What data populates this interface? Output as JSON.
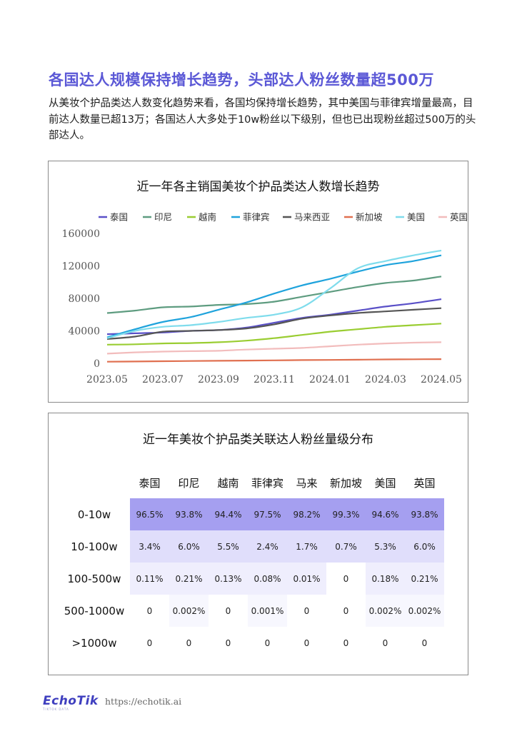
{
  "headline": "各国达人规模保持增长趋势，头部达人粉丝数量超500万",
  "intro": "从美妆个护品类达人数变化趋势来看，各国均保持增长趋势，其中美国与菲律宾增量最高，目前达人数量已超13万；各国达人大多处于10w粉丝以下级别，但也已出现粉丝超过500万的头部达人。",
  "chart_data": [
    {
      "type": "line",
      "title": "近一年各主销国美妆个护品类达人数增长趋势",
      "x": [
        "2023.05",
        "2023.06",
        "2023.07",
        "2023.08",
        "2023.09",
        "2023.10",
        "2023.11",
        "2023.12",
        "2024.01",
        "2024.02",
        "2024.03",
        "2024.04",
        "2024.05"
      ],
      "x_tick_labels": [
        "2023.05",
        "2023.07",
        "2023.09",
        "2023.11",
        "2024.01",
        "2024.03",
        "2024.05"
      ],
      "ylim": [
        0,
        160000
      ],
      "y_ticks": [
        0,
        40000,
        80000,
        120000,
        160000
      ],
      "grid": false,
      "legend_position": "top",
      "series": [
        {
          "name": "泰国",
          "color": "#5a50c8",
          "values": [
            36000,
            37000,
            38000,
            40000,
            41000,
            44000,
            50000,
            56000,
            60000,
            65000,
            70000,
            74000,
            79000
          ]
        },
        {
          "name": "印尼",
          "color": "#5e9c80",
          "values": [
            62000,
            65000,
            69000,
            70000,
            72000,
            73000,
            76000,
            82000,
            88000,
            94000,
            99000,
            102000,
            107000
          ]
        },
        {
          "name": "越南",
          "color": "#9acd32",
          "values": [
            23000,
            23500,
            24500,
            25000,
            26000,
            28000,
            31000,
            35000,
            39000,
            42000,
            45000,
            47000,
            49000
          ]
        },
        {
          "name": "菲律宾",
          "color": "#1fa3dc",
          "values": [
            32000,
            42000,
            51000,
            57000,
            66000,
            75000,
            86000,
            96000,
            104000,
            113000,
            121000,
            126000,
            133000
          ]
        },
        {
          "name": "马来西亚",
          "color": "#555555",
          "values": [
            30000,
            33000,
            39000,
            40000,
            41000,
            43000,
            48000,
            55000,
            59000,
            62000,
            64000,
            66000,
            68000
          ]
        },
        {
          "name": "新加坡",
          "color": "#e07050",
          "values": [
            2000,
            2300,
            2600,
            2900,
            3200,
            3400,
            3700,
            4000,
            4200,
            4500,
            4800,
            5000,
            5200
          ]
        },
        {
          "name": "美国",
          "color": "#7fdcec",
          "values": [
            31000,
            40000,
            45000,
            47000,
            51000,
            56000,
            60000,
            69000,
            92000,
            117000,
            126000,
            133000,
            139000
          ]
        },
        {
          "name": "英国",
          "color": "#f2bcbc",
          "values": [
            12000,
            13500,
            14500,
            15000,
            15500,
            17000,
            18000,
            19000,
            21000,
            23000,
            24500,
            25500,
            26000
          ]
        }
      ]
    },
    {
      "type": "table",
      "title": "近一年美妆个护品类关联达人粉丝量级分布",
      "columns": [
        "泰国",
        "印尼",
        "越南",
        "菲律宾",
        "马来",
        "新加坡",
        "美国",
        "英国"
      ],
      "rows": [
        {
          "label": "0-10w",
          "values": [
            "96.5%",
            "93.8%",
            "94.4%",
            "97.5%",
            "98.2%",
            "99.3%",
            "94.6%",
            "93.8%"
          ]
        },
        {
          "label": "10-100w",
          "values": [
            "3.4%",
            "6.0%",
            "5.5%",
            "2.4%",
            "1.7%",
            "0.7%",
            "5.3%",
            "6.0%"
          ]
        },
        {
          "label": "100-500w",
          "values": [
            "0.11%",
            "0.21%",
            "0.13%",
            "0.08%",
            "0.01%",
            "0",
            "0.18%",
            "0.21%"
          ]
        },
        {
          "label": "500-1000w",
          "values": [
            "0",
            "0.002%",
            "0",
            "0.001%",
            "0",
            "0",
            "0.002%",
            "0.002%"
          ]
        },
        {
          "label": ">1000w",
          "values": [
            "0",
            "0",
            "0",
            "0",
            "0",
            "0",
            "0",
            "0"
          ]
        }
      ]
    }
  ],
  "footer": {
    "logo": "EchoTik",
    "logo_sub": "TIKTOK DATA",
    "url": "https://echotik.ai"
  }
}
